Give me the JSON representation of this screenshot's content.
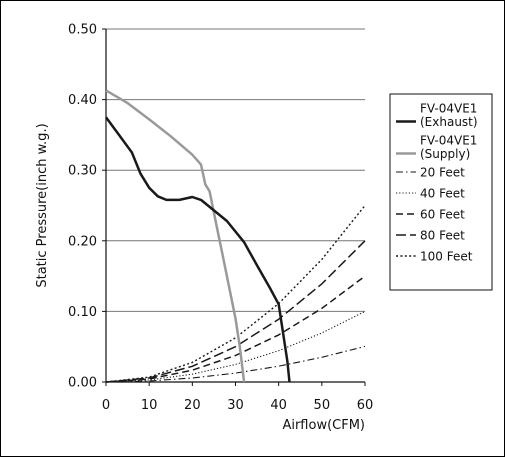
{
  "chart_data": {
    "type": "line",
    "xlabel": "Airflow(CFM)",
    "ylabel": "Static Pressure(inch w.g.)",
    "xlim": [
      0,
      60
    ],
    "ylim": [
      0,
      0.5
    ],
    "x_ticks": [
      "0",
      "10",
      "20",
      "30",
      "40",
      "50",
      "60"
    ],
    "y_ticks": [
      "0.00",
      "0.10",
      "0.20",
      "0.30",
      "0.40",
      "0.50"
    ],
    "grid": "horizontal",
    "legend_position": "right",
    "series": [
      {
        "name": "FV-04VE1 (Exhaust)",
        "label_lines": [
          "FV-04VE1",
          "(Exhaust)"
        ],
        "style": "solid-thick",
        "color": "#1a1a1a",
        "points": [
          [
            0,
            0.375
          ],
          [
            3,
            0.35
          ],
          [
            6,
            0.325
          ],
          [
            8,
            0.295
          ],
          [
            10,
            0.275
          ],
          [
            12,
            0.263
          ],
          [
            14,
            0.258
          ],
          [
            17,
            0.258
          ],
          [
            20,
            0.262
          ],
          [
            22,
            0.258
          ],
          [
            24,
            0.248
          ],
          [
            28,
            0.228
          ],
          [
            32,
            0.198
          ],
          [
            35,
            0.165
          ],
          [
            38,
            0.133
          ],
          [
            40,
            0.11
          ],
          [
            41,
            0.07
          ],
          [
            42,
            0.03
          ],
          [
            42.5,
            0.0
          ]
        ]
      },
      {
        "name": "FV-04VE1 (Supply)",
        "label_lines": [
          "FV-04VE1",
          "(Supply)"
        ],
        "style": "solid-thick",
        "color": "#9a9a9a",
        "points": [
          [
            0,
            0.413
          ],
          [
            5,
            0.395
          ],
          [
            10,
            0.372
          ],
          [
            15,
            0.348
          ],
          [
            20,
            0.322
          ],
          [
            22,
            0.308
          ],
          [
            23,
            0.28
          ],
          [
            24,
            0.27
          ],
          [
            25,
            0.24
          ],
          [
            26,
            0.21
          ],
          [
            27,
            0.18
          ],
          [
            28,
            0.15
          ],
          [
            29,
            0.12
          ],
          [
            30,
            0.09
          ],
          [
            31,
            0.05
          ],
          [
            32,
            0.0
          ]
        ]
      },
      {
        "name": "20 Feet",
        "label_lines": [
          "20 Feet"
        ],
        "style": "dash-dot",
        "color": "#1a1a1a",
        "points": [
          [
            0,
            0.0
          ],
          [
            10,
            0.0014
          ],
          [
            20,
            0.0056
          ],
          [
            30,
            0.0126
          ],
          [
            40,
            0.0224
          ],
          [
            50,
            0.035
          ],
          [
            60,
            0.0504
          ]
        ]
      },
      {
        "name": "40 Feet",
        "label_lines": [
          "40 Feet"
        ],
        "style": "dotted",
        "color": "#1a1a1a",
        "points": [
          [
            0,
            0.0
          ],
          [
            10,
            0.0028
          ],
          [
            20,
            0.0111
          ],
          [
            30,
            0.025
          ],
          [
            40,
            0.0444
          ],
          [
            50,
            0.0694
          ],
          [
            60,
            0.1
          ]
        ]
      },
      {
        "name": "60 Feet",
        "label_lines": [
          "60 Feet"
        ],
        "style": "dashed",
        "color": "#1a1a1a",
        "points": [
          [
            0,
            0.0
          ],
          [
            10,
            0.0042
          ],
          [
            20,
            0.0167
          ],
          [
            30,
            0.0375
          ],
          [
            40,
            0.0667
          ],
          [
            50,
            0.1042
          ],
          [
            60,
            0.15
          ]
        ]
      },
      {
        "name": "80 Feet",
        "label_lines": [
          "80 Feet"
        ],
        "style": "long-dashed",
        "color": "#1a1a1a",
        "points": [
          [
            0,
            0.0
          ],
          [
            10,
            0.0056
          ],
          [
            20,
            0.0222
          ],
          [
            30,
            0.05
          ],
          [
            40,
            0.0889
          ],
          [
            50,
            0.1389
          ],
          [
            60,
            0.2
          ]
        ]
      },
      {
        "name": "100 Feet",
        "label_lines": [
          "100 Feet"
        ],
        "style": "dense-dotted",
        "color": "#1a1a1a",
        "points": [
          [
            0,
            0.0
          ],
          [
            10,
            0.0069
          ],
          [
            20,
            0.0278
          ],
          [
            30,
            0.0625
          ],
          [
            40,
            0.1111
          ],
          [
            50,
            0.1736
          ],
          [
            60,
            0.25
          ]
        ]
      }
    ]
  }
}
